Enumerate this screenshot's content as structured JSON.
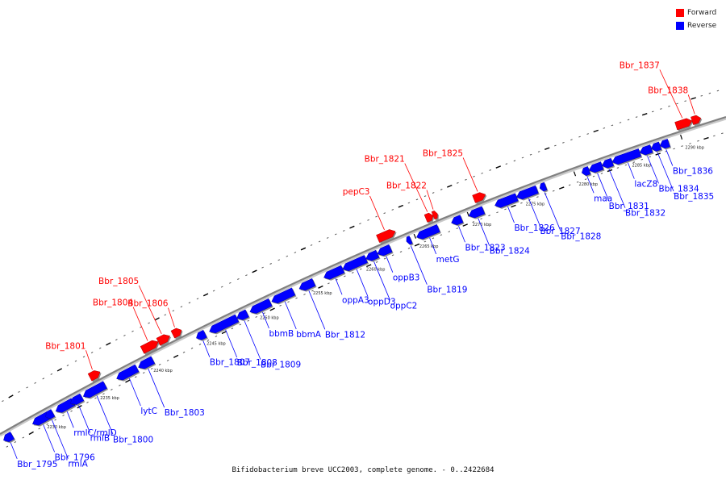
{
  "legend": {
    "forward_label": "Forward",
    "reverse_label": "Reverse"
  },
  "colors": {
    "forward": "#ff0000",
    "reverse": "#0000ff",
    "axis": "#808080"
  },
  "caption": "Bifidobacterium breve UCC2003, complete genome. - 0..2422684",
  "ticks": [
    "2230 kbp",
    "2235 kbp",
    "2240 kbp",
    "2245 kbp",
    "2250 kbp",
    "2255 kbp",
    "2260 kbp",
    "2265 kbp",
    "2270 kbp",
    "2275 kbp",
    "2280 kbp",
    "2285 kbp",
    "2290 kbp"
  ],
  "genes": [
    {
      "name": "Bbr_1795",
      "strand": "reverse",
      "t0": 0.0,
      "t1": 0.012
    },
    {
      "name": "Bbr_1796",
      "strand": "reverse",
      "t0": 0.04,
      "t1": 0.062
    },
    {
      "name": "rmlA",
      "strand": "reverse",
      "t0": 0.058,
      "t1": 0.068
    },
    {
      "name": "rmlC/rmlD",
      "strand": "reverse",
      "t0": 0.072,
      "t1": 0.096
    },
    {
      "name": "rmlB",
      "strand": "reverse",
      "t0": 0.092,
      "t1": 0.108
    },
    {
      "name": "Bbr_1800",
      "strand": "reverse",
      "t0": 0.11,
      "t1": 0.14
    },
    {
      "name": "Bbr_1801",
      "strand": "forward",
      "t0": 0.128,
      "t1": 0.142
    },
    {
      "name": "lytC",
      "strand": "reverse",
      "t0": 0.156,
      "t1": 0.184
    },
    {
      "name": "Bbr_1803",
      "strand": "reverse",
      "t0": 0.186,
      "t1": 0.206
    },
    {
      "name": "Bbr_1804",
      "strand": "forward",
      "t0": 0.2,
      "t1": 0.222
    },
    {
      "name": "Bbr_1805",
      "strand": "forward",
      "t0": 0.222,
      "t1": 0.238
    },
    {
      "name": "Bbr_1806",
      "strand": "forward",
      "t0": 0.242,
      "t1": 0.254
    },
    {
      "name": "Bbr_1807",
      "strand": "reverse",
      "t0": 0.266,
      "t1": 0.278
    },
    {
      "name": "Bbr_1808",
      "strand": "reverse",
      "t0": 0.284,
      "t1": 0.322
    },
    {
      "name": "Bbr_1809",
      "strand": "reverse",
      "t0": 0.322,
      "t1": 0.336
    },
    {
      "name": "bbmB",
      "strand": "reverse",
      "t0": 0.34,
      "t1": 0.368
    },
    {
      "name": "bbmA",
      "strand": "reverse",
      "t0": 0.37,
      "t1": 0.4
    },
    {
      "name": "Bbr_1812",
      "strand": "reverse",
      "t0": 0.408,
      "t1": 0.428
    },
    {
      "name": "oppA3",
      "strand": "reverse",
      "t0": 0.442,
      "t1": 0.468
    },
    {
      "name": "oppD3",
      "strand": "reverse",
      "t0": 0.468,
      "t1": 0.5
    },
    {
      "name": "oppC2",
      "strand": "reverse",
      "t0": 0.5,
      "t1": 0.516
    },
    {
      "name": "oppB3",
      "strand": "reverse",
      "t0": 0.516,
      "t1": 0.534
    },
    {
      "name": "pepC3",
      "strand": "forward",
      "t0": 0.524,
      "t1": 0.548
    },
    {
      "name": "Bbr_1819",
      "strand": "reverse",
      "t0": 0.556,
      "t1": 0.562
    },
    {
      "name": "metG",
      "strand": "reverse",
      "t0": 0.57,
      "t1": 0.6
    },
    {
      "name": "Bbr_1821",
      "strand": "forward",
      "t0": 0.59,
      "t1": 0.6
    },
    {
      "name": "Bbr_1822",
      "strand": "forward",
      "t0": 0.6,
      "t1": 0.606
    },
    {
      "name": "Bbr_1823",
      "strand": "reverse",
      "t0": 0.618,
      "t1": 0.632
    },
    {
      "name": "Bbr_1824",
      "strand": "reverse",
      "t0": 0.642,
      "t1": 0.662
    },
    {
      "name": "Bbr_1825",
      "strand": "forward",
      "t0": 0.656,
      "t1": 0.672
    },
    {
      "name": "Bbr_1826",
      "strand": "reverse",
      "t0": 0.678,
      "t1": 0.708
    },
    {
      "name": "Bbr_1827",
      "strand": "reverse",
      "t0": 0.708,
      "t1": 0.736
    },
    {
      "name": "Bbr_1828",
      "strand": "reverse",
      "t0": 0.74,
      "t1": 0.748
    },
    {
      "name": "maa",
      "strand": "reverse",
      "t0": 0.798,
      "t1": 0.808
    },
    {
      "name": "Bbr_1831",
      "strand": "reverse",
      "t0": 0.808,
      "t1": 0.826
    },
    {
      "name": "Bbr_1832",
      "strand": "reverse",
      "t0": 0.826,
      "t1": 0.84
    },
    {
      "name": "lacZ8",
      "strand": "reverse",
      "t0": 0.84,
      "t1": 0.878
    },
    {
      "name": "Bbr_1834",
      "strand": "reverse",
      "t0": 0.878,
      "t1": 0.894
    },
    {
      "name": "Bbr_1835",
      "strand": "reverse",
      "t0": 0.894,
      "t1": 0.906
    },
    {
      "name": "Bbr_1836",
      "strand": "reverse",
      "t0": 0.906,
      "t1": 0.918
    },
    {
      "name": "Bbr_1837",
      "strand": "forward",
      "t0": 0.934,
      "t1": 0.956
    },
    {
      "name": "Bbr_1838",
      "strand": "forward",
      "t0": 0.956,
      "t1": 0.968
    }
  ]
}
